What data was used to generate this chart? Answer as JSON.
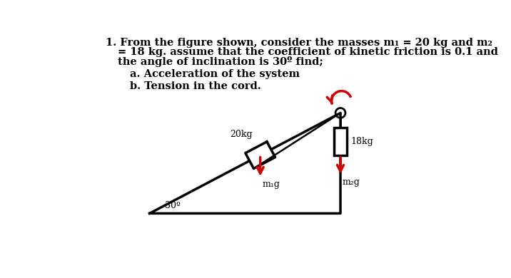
{
  "title_line1": "1. From the figure shown, consider the masses m₁ = 20 kg and m₂",
  "title_line2": "= 18 kg. assume that the coefficient of kinetic friction is 0.1 and",
  "title_line3": "the angle of inclination is 30º find;",
  "sub_a": "a. Acceleration of the system",
  "sub_b": "b. Tension in the cord.",
  "label_m1": "20kg",
  "label_m2": "18kg",
  "label_angle": "30º",
  "label_m1g": "m₁g",
  "label_m2g": "m₂g",
  "bg_color": "#ffffff",
  "text_color": "#000000",
  "arrow_color": "#cc0000",
  "line_color": "#000000"
}
